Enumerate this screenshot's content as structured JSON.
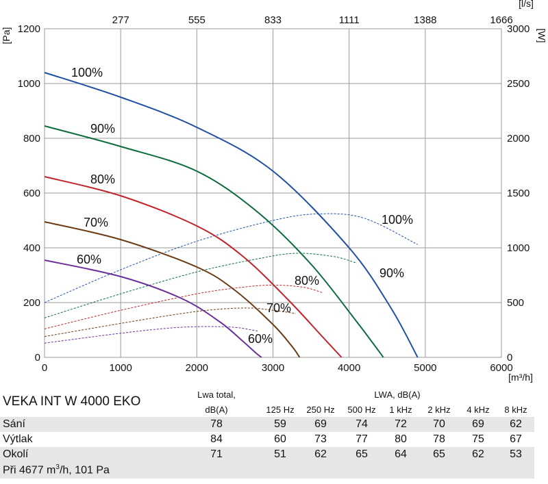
{
  "chart_data": {
    "type": "line",
    "title": "VEKA INT W 4000 EKO",
    "xlabel": "[m³/h]",
    "ylabel_left": "[Pa]",
    "ylabel_right": "[W]",
    "x2label": "[l/s]",
    "xlim": [
      0,
      6000
    ],
    "ylim_left": [
      0,
      1200
    ],
    "ylim_right": [
      0,
      3000
    ],
    "x_ticks": [
      "0",
      "1000",
      "2000",
      "3000",
      "4000",
      "5000",
      "6000"
    ],
    "x_tick_values": [
      0,
      1000,
      2000,
      3000,
      4000,
      5000,
      6000
    ],
    "x2_ticks": [
      "277",
      "555",
      "833",
      "1111",
      "1388",
      "1666"
    ],
    "y_left_ticks": [
      "0",
      "200",
      "400",
      "600",
      "800",
      "1000",
      "1200"
    ],
    "y_left_tick_values": [
      0,
      200,
      400,
      600,
      800,
      1000,
      1200
    ],
    "y_right_ticks": [
      "0",
      "500",
      "1000",
      "1500",
      "2000",
      "2500",
      "3000"
    ],
    "y_right_tick_values": [
      0,
      500,
      1000,
      1500,
      2000,
      2500,
      3000
    ],
    "grid": true,
    "pressure_series": [
      {
        "name": "100%",
        "color": "#1f4fa3",
        "x": [
          0,
          1000,
          2000,
          3000,
          4000,
          4550,
          4900
        ],
        "y": [
          1040,
          950,
          840,
          680,
          400,
          180,
          0
        ]
      },
      {
        "name": "90%",
        "color": "#0b6b3a",
        "x": [
          0,
          1000,
          2000,
          2800,
          3500,
          4100,
          4450
        ],
        "y": [
          845,
          770,
          680,
          530,
          340,
          130,
          0
        ]
      },
      {
        "name": "80%",
        "color": "#c0242b",
        "x": [
          0,
          1000,
          2000,
          2600,
          3200,
          3650,
          3900
        ],
        "y": [
          660,
          590,
          480,
          370,
          210,
          75,
          0
        ]
      },
      {
        "name": "70%",
        "color": "#6b3a12",
        "x": [
          0,
          1000,
          2000,
          2500,
          3000,
          3250,
          3350
        ],
        "y": [
          495,
          430,
          330,
          245,
          120,
          40,
          0
        ]
      },
      {
        "name": "60%",
        "color": "#6a2f9a",
        "x": [
          0,
          1000,
          1800,
          2300,
          2600,
          2780,
          2850
        ],
        "y": [
          355,
          295,
          215,
          130,
          60,
          15,
          0
        ]
      }
    ],
    "power_series": [
      {
        "name": "100%",
        "color": "#1f4fa3",
        "x": [
          0,
          1000,
          2000,
          3000,
          3600,
          4200,
          4900
        ],
        "y": [
          500,
          800,
          1060,
          1250,
          1310,
          1270,
          1030
        ]
      },
      {
        "name": "90%",
        "color": "#0b6b3a",
        "x": [
          0,
          1000,
          2000,
          2800,
          3300,
          3800,
          4100
        ],
        "y": [
          360,
          580,
          780,
          900,
          950,
          920,
          860
        ]
      },
      {
        "name": "80%",
        "color": "#c0242b",
        "x": [
          0,
          1000,
          2000,
          2600,
          3000,
          3400,
          3650
        ],
        "y": [
          260,
          430,
          580,
          640,
          660,
          640,
          590
        ]
      },
      {
        "name": "70%",
        "color": "#6b3a12",
        "x": [
          0,
          1000,
          1800,
          2300,
          2700,
          3000,
          3300
        ],
        "y": [
          190,
          310,
          400,
          440,
          450,
          430,
          400
        ]
      },
      {
        "name": "60%",
        "color": "#6a2f9a",
        "x": [
          0,
          1000,
          1600,
          2000,
          2300,
          2550,
          2800
        ],
        "y": [
          130,
          220,
          265,
          280,
          280,
          270,
          240
        ]
      }
    ],
    "curve_labels": {
      "pressure": [
        "100%",
        "90%",
        "80%",
        "70%",
        "60%"
      ],
      "power": [
        "100%",
        "90%",
        "80%",
        "70%",
        "60%"
      ]
    }
  },
  "table": {
    "title": "VEKA INT W 4000 EKO",
    "lwa_total_header": "Lwa total,",
    "lwa_total_unit": "dB(A)",
    "lwa_header": "LWA, dB(A)",
    "bands": [
      "125  Hz",
      "250  Hz",
      "500  Hz",
      "1 kHz",
      "2 kHz",
      "4 kHz",
      "8 kHz"
    ],
    "rows": [
      {
        "label": "Sání",
        "total": "78",
        "values": [
          "59",
          "69",
          "74",
          "72",
          "70",
          "69",
          "62"
        ]
      },
      {
        "label": "Výtlak",
        "total": "84",
        "values": [
          "60",
          "73",
          "77",
          "80",
          "78",
          "75",
          "67"
        ]
      },
      {
        "label": "Okolí",
        "total": "71",
        "values": [
          "51",
          "62",
          "65",
          "64",
          "65",
          "62",
          "53"
        ]
      }
    ],
    "note_prefix": "Při 4677  m",
    "note_sup": "3",
    "note_suffix": "/h, 101 Pa"
  }
}
